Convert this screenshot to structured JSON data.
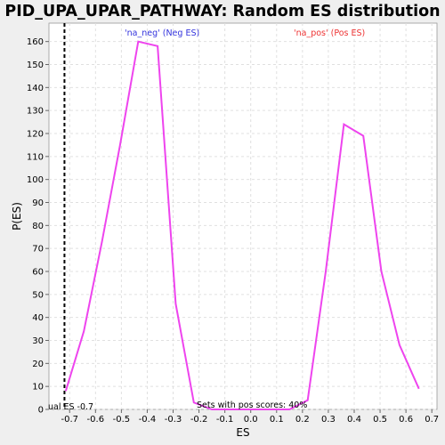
{
  "chart_data": {
    "type": "line",
    "title": "PID_UPA_UPAR_PATHWAY: Random ES distribution",
    "xlabel": "ES",
    "ylabel": "P(ES)",
    "xlim": [
      -0.78,
      0.72
    ],
    "ylim": [
      0,
      168
    ],
    "x_ticks": [
      -0.7,
      -0.6,
      -0.5,
      -0.4,
      -0.3,
      -0.2,
      -0.1,
      0.0,
      0.1,
      0.2,
      0.3,
      0.4,
      0.5,
      0.6,
      0.7
    ],
    "x_tick_labels": [
      "-0.7",
      "-0.6",
      "-0.5",
      "-0.4",
      "-0.3",
      "-0.2",
      "-0.1",
      "0.0",
      "0.1",
      "0.2",
      "0.3",
      "0.4",
      "0.5",
      "0.6",
      "0.7"
    ],
    "y_ticks": [
      0,
      10,
      20,
      30,
      40,
      50,
      60,
      70,
      80,
      90,
      100,
      110,
      120,
      130,
      140,
      150,
      160
    ],
    "y_tick_labels": [
      "0",
      "10",
      "20",
      "30",
      "40",
      "50",
      "60",
      "70",
      "80",
      "90",
      "100",
      "110",
      "120",
      "130",
      "140",
      "150",
      "160"
    ],
    "grid": true,
    "series": [
      {
        "color": "#ee44ee",
        "x": [
          -0.715,
          -0.645,
          -0.575,
          -0.505,
          -0.435,
          -0.36,
          -0.29,
          -0.22,
          -0.15,
          -0.08,
          0.0,
          0.08,
          0.15,
          0.22,
          0.29,
          0.36,
          0.435,
          0.505,
          0.575,
          0.65
        ],
        "y": [
          8,
          34,
          73,
          115,
          160,
          158,
          46,
          3,
          0,
          0,
          0,
          0,
          0,
          4,
          60,
          124,
          119,
          60,
          28,
          9
        ]
      }
    ],
    "marker_line": {
      "x": -0.72,
      "style": "dashed",
      "color": "#000000"
    },
    "annotations": {
      "neg_label": {
        "text": "'na_neg' (Neg ES)",
        "color": "#3333dd"
      },
      "pos_label": {
        "text": "'na_pos' (Pos ES)",
        "color": "#ee3333"
      },
      "pos_scores": {
        "text": "Sets with pos scores: 40%",
        "color": "#000000"
      },
      "actual_es": {
        "text": "ual ES -0.7",
        "color": "#000000"
      }
    },
    "colors": {
      "background": "#efefef",
      "plot_background": "#ffffff",
      "grid": "#e0e0e0"
    }
  }
}
